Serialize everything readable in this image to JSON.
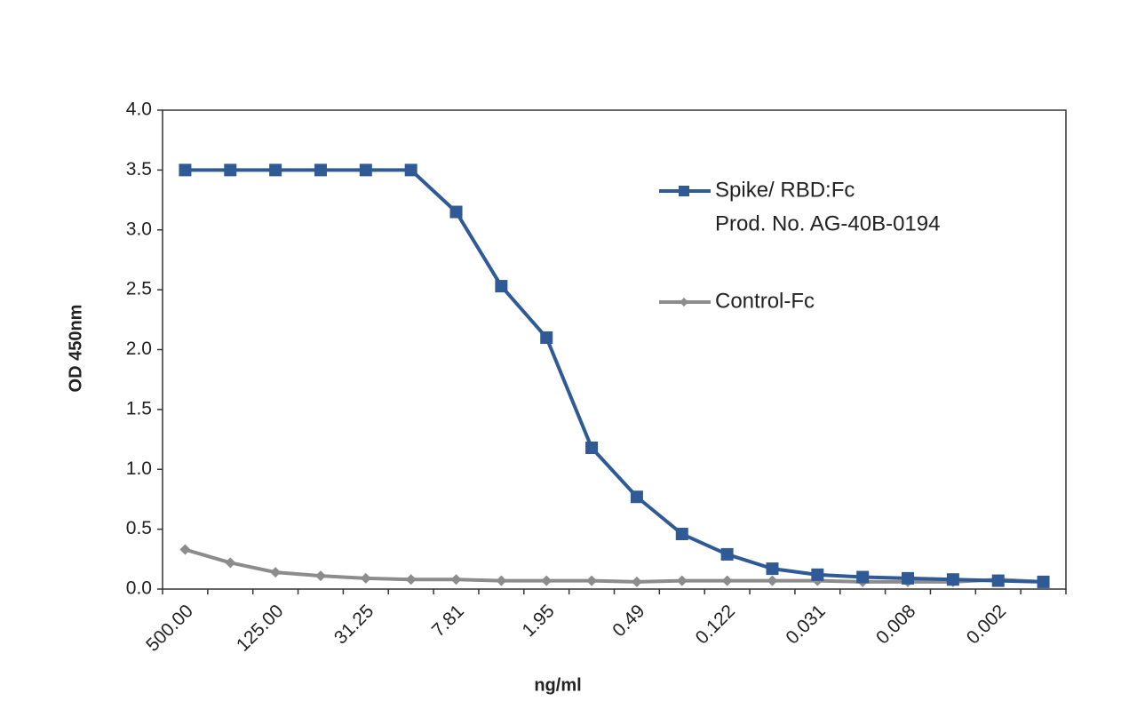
{
  "chart_data": {
    "type": "line",
    "x_label": "ng/ml",
    "y_label": "OD 450nm",
    "categories": [
      "500.00",
      null,
      "125.00",
      null,
      "31.25",
      null,
      "7.81",
      null,
      "1.95",
      null,
      "0.49",
      null,
      "0.122",
      null,
      "0.031",
      null,
      "0.008",
      null,
      "0.002",
      null
    ],
    "series": [
      {
        "name": "Spike/ RBD:Fc",
        "product": "Prod. No. AG-40B-0194",
        "color": "#2f5a95",
        "marker": "square",
        "values": [
          3.5,
          3.5,
          3.5,
          3.5,
          3.5,
          3.5,
          3.15,
          2.53,
          2.1,
          1.18,
          0.77,
          0.46,
          0.29,
          0.17,
          0.12,
          0.1,
          0.09,
          0.08,
          0.07,
          0.06
        ]
      },
      {
        "name": "Control-Fc",
        "color": "#8c8c8c",
        "marker": "diamond",
        "values": [
          0.33,
          0.22,
          0.14,
          0.11,
          0.09,
          0.08,
          0.08,
          0.07,
          0.07,
          0.07,
          0.06,
          0.07,
          0.07,
          0.07,
          0.07,
          0.06,
          0.06,
          0.06,
          0.08,
          0.06
        ]
      }
    ],
    "ylim": [
      0,
      4
    ],
    "yticks": [
      {
        "value": 0,
        "label": "0.0"
      },
      {
        "value": 0.5,
        "label": "0.5"
      },
      {
        "value": 1,
        "label": "1.0"
      },
      {
        "value": 1.5,
        "label": "1.5"
      },
      {
        "value": 2,
        "label": "2.0"
      },
      {
        "value": 2.5,
        "label": "2.5"
      },
      {
        "value": 3,
        "label": "3.0"
      },
      {
        "value": 3.5,
        "label": "3.5"
      },
      {
        "value": 4,
        "label": "4.0"
      }
    ],
    "grid": false
  }
}
